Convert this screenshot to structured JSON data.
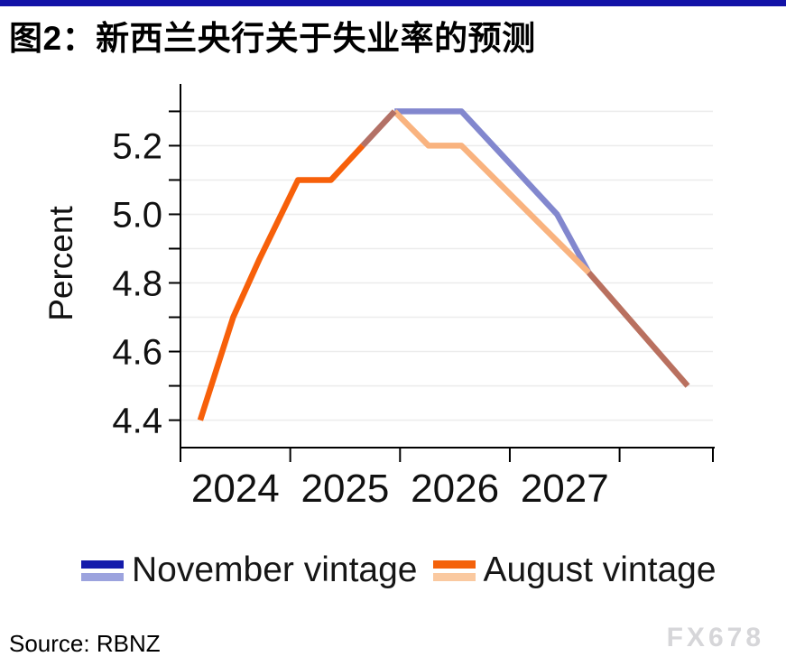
{
  "page": {
    "top_bar_color": "#1213a7",
    "title": "图2：新西兰央行关于失业率的预测",
    "source": "Source: RBNZ",
    "watermark": "FX678"
  },
  "legend": {
    "entries": [
      {
        "label": "November vintage",
        "color_actual": "#141bab",
        "color_forecast": "#9ca3de"
      },
      {
        "label": "August vintage",
        "color_actual": "#f4610a",
        "color_forecast": "#fac9a0"
      }
    ]
  },
  "chart_data": {
    "type": "line",
    "title": "图2：新西兰央行关于失业率的预测",
    "xlabel": "",
    "ylabel": "Percent",
    "xlim": [
      2024,
      2028.85
    ],
    "ylim": [
      4.32,
      5.38
    ],
    "grid": "horizontal",
    "gridline_color": "#ececec",
    "gridline_values": [
      4.4,
      4.5,
      4.6,
      4.7,
      4.8,
      4.9,
      5.0,
      5.1,
      5.2,
      5.3
    ],
    "y_ticks_major": [
      4.4,
      4.6,
      4.8,
      5.0,
      5.2
    ],
    "y_ticks_minor": [
      4.5,
      4.7,
      4.9,
      5.1,
      5.3
    ],
    "x_tick_positions": [
      2024,
      2025,
      2026,
      2027,
      2028,
      2028.85
    ],
    "x_tick_labels": [
      {
        "label": "2024",
        "x": 2024.5
      },
      {
        "label": "2025",
        "x": 2025.5
      },
      {
        "label": "2026",
        "x": 2026.5
      },
      {
        "label": "2027",
        "x": 2027.5
      }
    ],
    "legend_position": "bottom",
    "series": [
      {
        "name": "november-vintage-forecast",
        "color": "#8287ce",
        "points": [
          [
            2025.95,
            5.3
          ],
          [
            2026.56,
            5.3
          ],
          [
            2027.43,
            5.0
          ],
          [
            2027.72,
            4.83
          ]
        ]
      },
      {
        "name": "august-vintage-forecast",
        "color": "#f9b37f",
        "points": [
          [
            2025.95,
            5.3
          ],
          [
            2026.26,
            5.2
          ],
          [
            2026.56,
            5.2
          ],
          [
            2027.72,
            4.83
          ]
        ]
      },
      {
        "name": "shared-actuals",
        "color": "#f7600a",
        "points": [
          [
            2024.18,
            4.4
          ],
          [
            2024.48,
            4.7
          ],
          [
            2024.72,
            4.87
          ],
          [
            2025.07,
            5.1
          ],
          [
            2025.37,
            5.1
          ],
          [
            2025.66,
            5.2
          ]
        ]
      },
      {
        "name": "actuals-overlap-blend",
        "color": "#b37166",
        "points": [
          [
            2025.66,
            5.2
          ],
          [
            2025.95,
            5.3
          ]
        ]
      },
      {
        "name": "forecast-overlap-blend",
        "color": "#b9705f",
        "points": [
          [
            2027.72,
            4.83
          ],
          [
            2028.62,
            4.5
          ]
        ]
      }
    ]
  }
}
